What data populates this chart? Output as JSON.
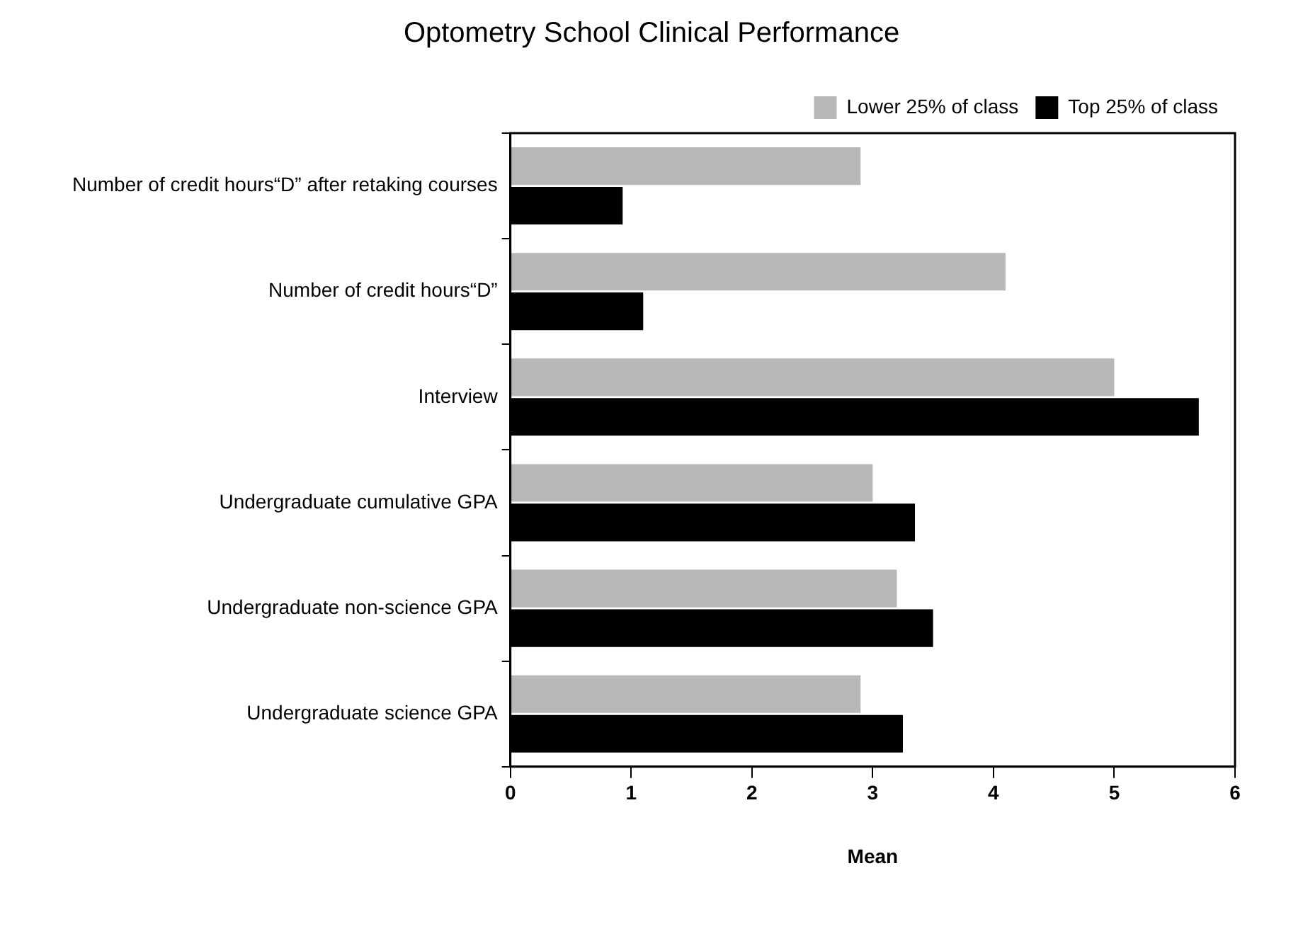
{
  "chart_data": {
    "type": "bar",
    "orientation": "horizontal",
    "title": "Optometry School Clinical Performance",
    "xlabel": "Mean",
    "categories": [
      "Number of credit hours“D” after retaking courses",
      "Number of credit hours“D”",
      "Interview",
      "Undergraduate cumulative GPA",
      "Undergraduate non-science GPA",
      "Undergraduate science GPA"
    ],
    "series": [
      {
        "name": "Lower 25% of class",
        "color": "#b8b8b8",
        "values": [
          2.9,
          4.1,
          5.0,
          3.0,
          3.2,
          2.9
        ]
      },
      {
        "name": "Top 25% of class",
        "color": "#000000",
        "values": [
          0.93,
          1.1,
          5.7,
          3.35,
          3.5,
          3.25
        ]
      }
    ],
    "xlim": [
      0,
      6
    ],
    "xticks": [
      0,
      1,
      2,
      3,
      4,
      5,
      6
    ],
    "grid": false,
    "legend": "top right"
  }
}
